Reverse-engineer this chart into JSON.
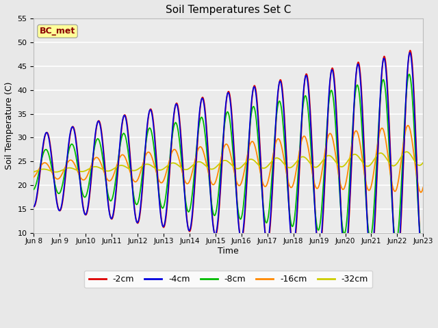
{
  "title": "Soil Temperatures Set C",
  "xlabel": "Time",
  "ylabel": "Soil Temperature (C)",
  "ylim": [
    10,
    55
  ],
  "yticks": [
    10,
    15,
    20,
    25,
    30,
    35,
    40,
    45,
    50,
    55
  ],
  "annotation": "BC_met",
  "annotation_color": "#8B0000",
  "annotation_bg": "#FFFF99",
  "fig_bg": "#E8E8E8",
  "plot_bg": "#EBEBEB",
  "legend_bg": "#FFFFFF",
  "series_colors": {
    "-2cm": "#DD0000",
    "-4cm": "#0000DD",
    "-8cm": "#00BB00",
    "-16cm": "#FF8800",
    "-32cm": "#CCCC00"
  },
  "xtick_labels": [
    "Jun 8",
    "Jun 9",
    "Jun 10",
    "Jun 11",
    "Jun 12",
    "Jun 13",
    "Jun 14",
    "Jun 15",
    "Jun 16",
    "Jun 17",
    "Jun 18",
    "Jun 19",
    "Jun 20",
    "Jun 21",
    "Jun 22",
    "Jun 23"
  ],
  "num_days": 15
}
